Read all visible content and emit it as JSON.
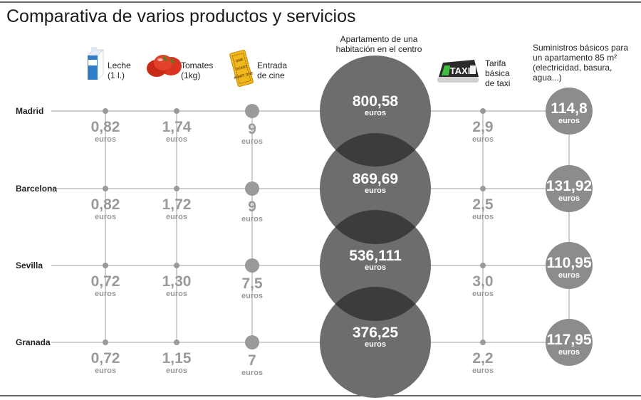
{
  "chart_data": {
    "type": "table",
    "title": "Comparativa de varios productos y servicios",
    "unit": "euros",
    "cities": [
      "Madrid",
      "Barcelona",
      "Sevilla",
      "Granada"
    ],
    "columns": [
      {
        "header": [
          "Leche",
          "(1 l.)"
        ],
        "icon": "milk-carton-icon",
        "values": [
          "0,82",
          "0,82",
          "0,72",
          "0,72"
        ]
      },
      {
        "header": [
          "Tomates",
          "(1kg)"
        ],
        "icon": "tomatoes-icon",
        "values": [
          "1,74",
          "1,72",
          "1,30",
          "1,15"
        ]
      },
      {
        "header": [
          "Entrada",
          "de cine"
        ],
        "icon": "cinema-ticket-icon",
        "ticket_text": [
          "ONE",
          "TICKET",
          "ADMIT ONE"
        ],
        "values": [
          "9",
          "9",
          "7,5",
          "7"
        ]
      },
      {
        "header": [
          "Apartamento de una",
          "habitación en el centro"
        ],
        "values": [
          "800,58",
          "869,69",
          "536,111",
          "376,25"
        ]
      },
      {
        "header": [
          "Tarifa",
          "básica",
          "de taxi"
        ],
        "icon": "taxi-sign-icon",
        "sign_text": "TAXI",
        "values": [
          "2,9",
          "2,5",
          "3,0",
          "2,2"
        ]
      },
      {
        "header": [
          "Suministros básicos para",
          "un apartamento 85 m²",
          "(electricidad, basura,",
          "agua...)"
        ],
        "values": [
          "114,8",
          "131,92",
          "110,95",
          "117,95"
        ]
      }
    ]
  },
  "colors": {
    "line": "#bdbdbd",
    "dot": "#9a9a9a",
    "cinema_dot": "#9a9a9a",
    "apartment_circle": "#6d6d6d",
    "apartment_overlap": "#3c3c3c",
    "utilities_circle": "#8c8c8c",
    "value_text": "#9a9a9a",
    "milk_carton": "#2f7dc4",
    "tomato": "#d9341f",
    "ticket": "#f0b81e",
    "taxi_sign": "#2a2a2a"
  }
}
